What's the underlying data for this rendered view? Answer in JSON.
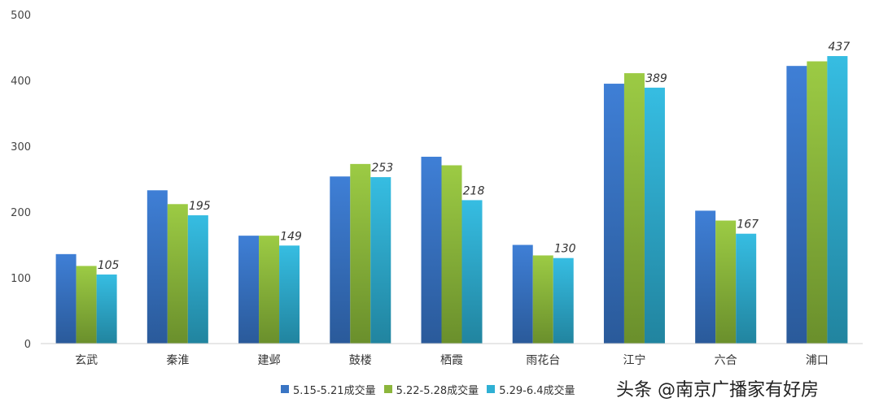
{
  "chart_data": {
    "type": "bar",
    "categories": [
      "玄武",
      "秦淮",
      "建邺",
      "鼓楼",
      "栖霞",
      "雨花台",
      "江宁",
      "六合",
      "浦口"
    ],
    "series": [
      {
        "name": "5.15-5.21成交量",
        "values": [
          136,
          233,
          164,
          254,
          284,
          150,
          395,
          202,
          422
        ],
        "color": "#3a75c4"
      },
      {
        "name": "5.22-5.28成交量",
        "values": [
          118,
          212,
          164,
          273,
          271,
          134,
          411,
          187,
          429
        ],
        "color": "#8cb63c"
      },
      {
        "name": "5.29-6.4成交量",
        "values": [
          105,
          195,
          149,
          253,
          218,
          130,
          389,
          167,
          437
        ],
        "color": "#2fb0d4"
      }
    ],
    "data_labels": [
      "105",
      "195",
      "149",
      "253",
      "218",
      "130",
      "389",
      "167",
      "437"
    ],
    "yticks": [
      "0",
      "100",
      "200",
      "300",
      "400",
      "500"
    ],
    "ylim": [
      0,
      500
    ],
    "grid": false,
    "legend_position": "bottom"
  },
  "watermark": "头条 @南京广播家有好房"
}
